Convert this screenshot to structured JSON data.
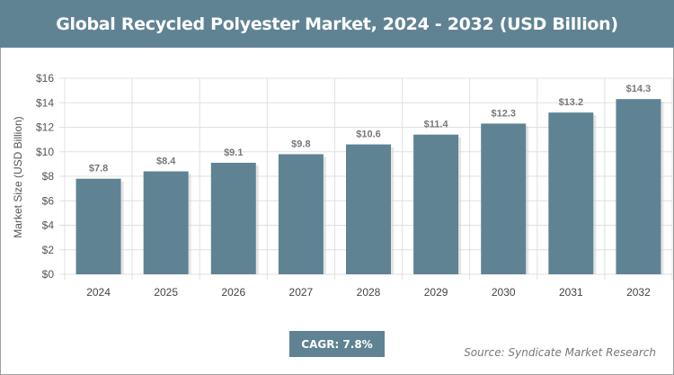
{
  "title": "Global Recycled Polyester Market, 2024 - 2032 (USD Billion)",
  "cagr": "CAGR: 7.8%",
  "source": "Source: Syndicate Market Research",
  "colors": {
    "bar": "#5f8393",
    "header": "#5f8393",
    "grid": "#e0e0e0"
  },
  "chart_data": {
    "type": "bar",
    "title": "Global Recycled Polyester Market, 2024 - 2032 (USD Billion)",
    "xlabel": "",
    "ylabel": "Market Size (USD Billion)",
    "categories": [
      "2024",
      "2025",
      "2026",
      "2027",
      "2028",
      "2029",
      "2030",
      "2031",
      "2032"
    ],
    "values": [
      7.8,
      8.4,
      9.1,
      9.8,
      10.6,
      11.4,
      12.3,
      13.2,
      14.3
    ],
    "data_labels": [
      "$7.8",
      "$8.4",
      "$9.1",
      "$9.8",
      "$10.6",
      "$11.4",
      "$12.3",
      "$13.2",
      "$14.3"
    ],
    "ylim": [
      0,
      16
    ],
    "yticks": [
      "$0",
      "$2",
      "$4",
      "$6",
      "$8",
      "$10",
      "$12",
      "$14",
      "$16"
    ],
    "grid": true
  }
}
